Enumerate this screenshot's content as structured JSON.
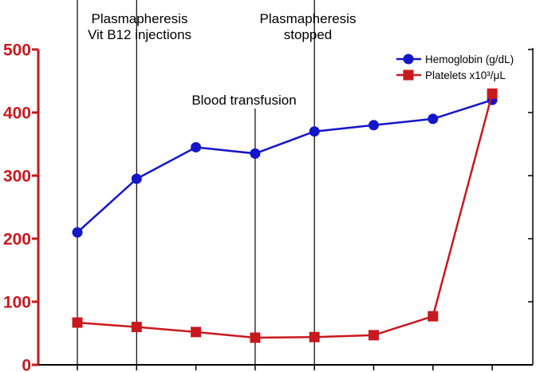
{
  "chart_data": {
    "type": "line",
    "x": [
      1,
      2,
      3,
      4,
      5,
      6,
      7,
      8
    ],
    "ylim": [
      0,
      500
    ],
    "yticks": [
      "0",
      "100",
      "200",
      "300",
      "400",
      "500"
    ],
    "series": [
      {
        "name": "Hemoglobin (g/dL)",
        "color": "#1416c8",
        "marker": "circle",
        "values": [
          210,
          295,
          345,
          335,
          370,
          380,
          390,
          420
        ]
      },
      {
        "name": "Platelets x10³/μL",
        "color": "#c8191e",
        "marker": "square",
        "values": [
          67,
          60,
          52,
          43,
          44,
          47,
          77,
          430
        ]
      }
    ],
    "annotations": [
      {
        "x": 1,
        "lines": [
          "Plasmapheresis",
          "Vit B12 injections"
        ]
      },
      {
        "x": 2,
        "lines": []
      },
      {
        "x": 4,
        "lines": [
          "Blood transfusion"
        ]
      },
      {
        "x": 5,
        "lines": [
          "Plasmapheresis",
          "stopped"
        ]
      }
    ],
    "legend_position": "top-right",
    "axis_color": "#c8191e",
    "grid": false
  }
}
